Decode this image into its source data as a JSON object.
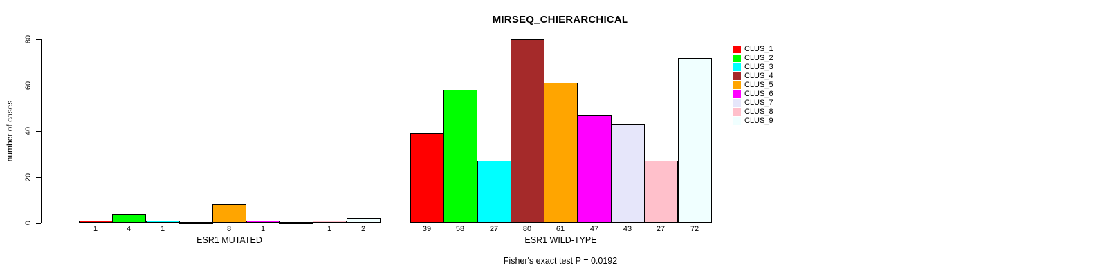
{
  "chart_data": {
    "type": "bar",
    "title": "MIRSEQ_CHIERARCHICAL",
    "ylabel": "number of cases",
    "ylim": [
      0,
      80
    ],
    "yticks": [
      0,
      20,
      40,
      60,
      80
    ],
    "grid": false,
    "legend_position": "right-outside",
    "background_color": "#FFFFFF",
    "bar_border_color": "#000000",
    "series": [
      {
        "name": "CLUS_1",
        "color": "#FF0000",
        "values": [
          1,
          39
        ]
      },
      {
        "name": "CLUS_2",
        "color": "#00FF00",
        "values": [
          4,
          58
        ]
      },
      {
        "name": "CLUS_3",
        "color": "#00FFFF",
        "values": [
          1,
          27
        ]
      },
      {
        "name": "CLUS_4",
        "color": "#A52A2A",
        "values": [
          0,
          80
        ]
      },
      {
        "name": "CLUS_5",
        "color": "#FFA500",
        "values": [
          8,
          61
        ]
      },
      {
        "name": "CLUS_6",
        "color": "#FF00FF",
        "values": [
          1,
          47
        ]
      },
      {
        "name": "CLUS_7",
        "color": "#E6E6FA",
        "values": [
          0,
          43
        ]
      },
      {
        "name": "CLUS_8",
        "color": "#FFC0CB",
        "values": [
          1,
          27
        ]
      },
      {
        "name": "CLUS_9",
        "color": "#F0FFFF",
        "values": [
          2,
          72
        ]
      }
    ],
    "groups": [
      {
        "label": "ESR1 MUTATED"
      },
      {
        "label": "ESR1 WILD-TYPE"
      }
    ],
    "bar_value_labels": {
      "ESR1 MUTATED": [
        1,
        4,
        1,
        null,
        8,
        1,
        null,
        1,
        2
      ],
      "ESR1 WILD-TYPE": [
        39,
        58,
        27,
        80,
        61,
        47,
        43,
        27,
        72
      ]
    },
    "annotation": "Fisher's exact test P = 0.0192"
  }
}
